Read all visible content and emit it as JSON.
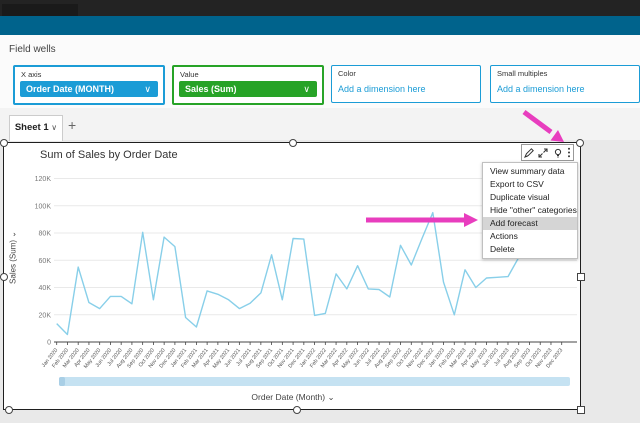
{
  "field_wells": {
    "title": "Field wells",
    "wells": [
      {
        "label": "X axis",
        "value": "Order Date (MONTH)",
        "chevron": "∨"
      },
      {
        "label": "Value",
        "value": "Sales (Sum)",
        "chevron": "∨"
      },
      {
        "label": "Color",
        "placeholder": "Add a dimension here"
      },
      {
        "label": "Small multiples",
        "placeholder": "Add a dimension here"
      }
    ]
  },
  "sheet_tabs": {
    "active_label": "Sheet 1",
    "active_chevron": "∨",
    "add_label": "+"
  },
  "visual": {
    "title": "Sum of Sales by Order Date",
    "toolbar_icons": [
      "pencil-icon",
      "maximize-icon",
      "insights-icon",
      "kebab-menu-icon"
    ],
    "menu": {
      "items": [
        "View summary data",
        "Export to CSV",
        "Duplicate visual",
        "Hide \"other\" categories",
        "Add forecast",
        "Actions",
        "Delete"
      ],
      "highlighted_item": "Add forecast"
    },
    "xaxis_title": "Order Date (Month) ⌄",
    "yaxis_title": "Sales (Sum)  ⌄"
  },
  "chart_data": {
    "type": "line",
    "title": "Sum of Sales by Order Date",
    "xlabel": "Order Date (Month)",
    "ylabel": "Sales (Sum)",
    "legend": "none",
    "grid": "horizontal",
    "ylim": [
      0,
      130000
    ],
    "y_tick_labels": [
      "0",
      "20K",
      "40K",
      "60K",
      "80K",
      "100K",
      "120K"
    ],
    "y_tick_values": [
      0,
      20000,
      40000,
      60000,
      80000,
      100000,
      120000
    ],
    "categories": [
      "Jan 2020",
      "Feb 2020",
      "Mar 2020",
      "Apr 2020",
      "May 2020",
      "Jun 2020",
      "Jul 2020",
      "Aug 2020",
      "Sep 2020",
      "Oct 2020",
      "Nov 2020",
      "Dec 2020",
      "Jan 2021",
      "Feb 2021",
      "Mar 2021",
      "Apr 2021",
      "May 2021",
      "Jun 2021",
      "Jul 2021",
      "Aug 2021",
      "Sep 2021",
      "Oct 2021",
      "Nov 2021",
      "Dec 2021",
      "Jan 2022",
      "Feb 2022",
      "Mar 2022",
      "Apr 2022",
      "May 2022",
      "Jun 2022",
      "Jul 2022",
      "Aug 2022",
      "Sep 2022",
      "Oct 2022",
      "Nov 2022",
      "Dec 2022",
      "Jan 2023",
      "Feb 2023",
      "Mar 2023",
      "Apr 2023",
      "May 2023",
      "Jun 2023",
      "Jul 2023",
      "Aug 2023",
      "Sep 2023",
      "Oct 2023",
      "Nov 2023",
      "Dec 2023"
    ],
    "series": [
      {
        "name": "Sales (Sum)",
        "values": [
          13500,
          5500,
          55000,
          29000,
          24500,
          33500,
          33500,
          28000,
          80500,
          31000,
          77000,
          70000,
          18000,
          11000,
          37500,
          35000,
          31000,
          24500,
          28500,
          36000,
          64000,
          31000,
          76000,
          75500,
          19500,
          21000,
          50000,
          39000,
          56000,
          39000,
          38500,
          33000,
          71000,
          56500,
          76000,
          95000,
          44000,
          20000,
          53000,
          40000,
          47000,
          47500,
          48000,
          62000,
          70000,
          74000,
          68000,
          78000
        ]
      }
    ],
    "line_color": "#88cfe9"
  },
  "colors": {
    "app_bar": "#00638c",
    "pill_blue": "#1b9cd6",
    "pill_green": "#27a327",
    "link_blue": "#1b9cd6",
    "menu_highlight": "#d5d5d5",
    "annotation_pink": "#e83dbe",
    "scrollbar": "#c5e2f2"
  }
}
